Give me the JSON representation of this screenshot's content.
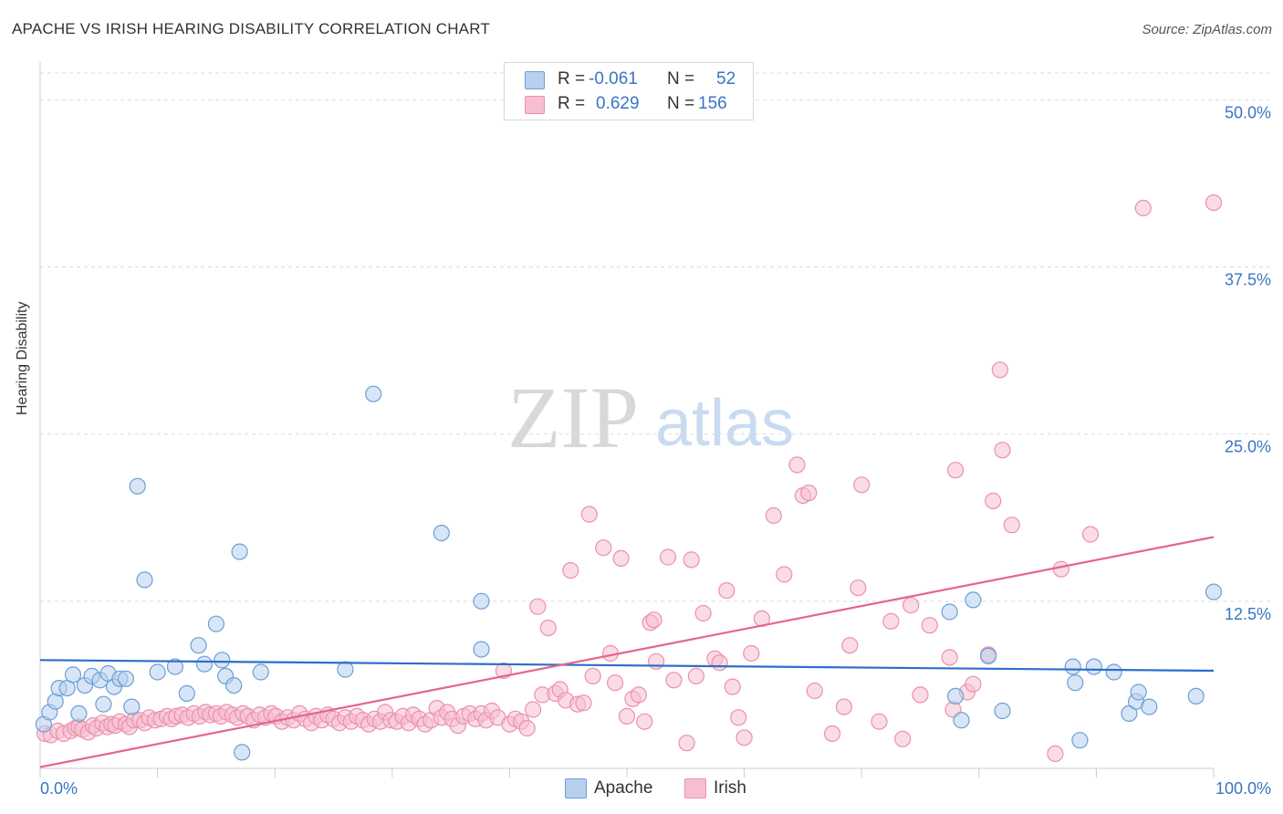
{
  "title": "APACHE VS IRISH HEARING DISABILITY CORRELATION CHART",
  "source": "Source: ZipAtlas.com",
  "colors": {
    "apache_fill": "#b7d0ee",
    "apache_stroke": "#6d9fd6",
    "apache_line": "#2c6fcb",
    "irish_fill": "#f6bfd0",
    "irish_stroke": "#ec8fb0",
    "irish_line": "#e5648f",
    "grid": "#dddddd",
    "tick_text": "#3a75c4"
  },
  "legend": {
    "r_label": "R =",
    "n_label": "N =",
    "apache": {
      "r": "-0.061",
      "n": "52"
    },
    "irish": {
      "r": "0.629",
      "n": "156"
    }
  },
  "bottom_legend": {
    "apache": "Apache",
    "irish": "Irish"
  },
  "watermark": {
    "zip": "ZIP",
    "atlas": "atlas"
  },
  "chart_data": {
    "type": "scatter",
    "title": "APACHE VS IRISH HEARING DISABILITY CORRELATION CHART",
    "xlabel": "",
    "ylabel": "Hearing Disability",
    "xlim": [
      0,
      100
    ],
    "ylim": [
      0,
      52
    ],
    "x_tick_labels": [
      "0.0%",
      "100.0%"
    ],
    "y_ticks": [
      12.5,
      25.0,
      37.5,
      50.0
    ],
    "y_tick_labels": [
      "12.5%",
      "25.0%",
      "37.5%",
      "50.0%"
    ],
    "grid": true,
    "series": [
      {
        "name": "Apache",
        "trend": {
          "x": [
            0,
            100
          ],
          "y": [
            8.1,
            7.3
          ]
        },
        "points": [
          [
            0.3,
            3.3
          ],
          [
            0.8,
            4.2
          ],
          [
            1.3,
            5.0
          ],
          [
            1.6,
            6.0
          ],
          [
            2.3,
            6.0
          ],
          [
            2.8,
            7.0
          ],
          [
            3.3,
            4.1
          ],
          [
            3.8,
            6.2
          ],
          [
            4.4,
            6.9
          ],
          [
            5.1,
            6.6
          ],
          [
            5.4,
            4.8
          ],
          [
            5.8,
            7.1
          ],
          [
            6.3,
            6.1
          ],
          [
            6.8,
            6.7
          ],
          [
            7.3,
            6.7
          ],
          [
            7.8,
            4.6
          ],
          [
            8.3,
            21.1
          ],
          [
            8.9,
            14.1
          ],
          [
            10.0,
            7.2
          ],
          [
            11.5,
            7.6
          ],
          [
            12.5,
            5.6
          ],
          [
            13.5,
            9.2
          ],
          [
            14.0,
            7.8
          ],
          [
            15.0,
            10.8
          ],
          [
            15.5,
            8.1
          ],
          [
            15.8,
            6.9
          ],
          [
            16.5,
            6.2
          ],
          [
            17.0,
            16.2
          ],
          [
            17.2,
            1.2
          ],
          [
            18.8,
            7.2
          ],
          [
            26.0,
            7.4
          ],
          [
            28.4,
            28.0
          ],
          [
            34.2,
            17.6
          ],
          [
            37.6,
            12.5
          ],
          [
            37.6,
            8.9
          ],
          [
            77.5,
            11.7
          ],
          [
            78.0,
            5.4
          ],
          [
            78.5,
            3.6
          ],
          [
            79.5,
            12.6
          ],
          [
            80.8,
            8.4
          ],
          [
            82.0,
            4.3
          ],
          [
            88.0,
            7.6
          ],
          [
            88.2,
            6.4
          ],
          [
            88.6,
            2.1
          ],
          [
            89.8,
            7.6
          ],
          [
            91.5,
            7.2
          ],
          [
            92.8,
            4.1
          ],
          [
            93.4,
            5.0
          ],
          [
            93.6,
            5.7
          ],
          [
            94.5,
            4.6
          ],
          [
            98.5,
            5.4
          ],
          [
            100.0,
            13.2
          ]
        ]
      },
      {
        "name": "Irish",
        "trend": {
          "x": [
            0,
            100
          ],
          "y": [
            0.1,
            17.3
          ]
        },
        "points": [
          [
            0.4,
            2.6
          ],
          [
            0.9,
            2.5
          ],
          [
            1.5,
            2.8
          ],
          [
            2.0,
            2.6
          ],
          [
            2.6,
            2.8
          ],
          [
            3.0,
            3.0
          ],
          [
            3.3,
            3.1
          ],
          [
            3.6,
            2.9
          ],
          [
            4.1,
            2.7
          ],
          [
            4.5,
            3.2
          ],
          [
            4.8,
            3.0
          ],
          [
            5.3,
            3.4
          ],
          [
            5.7,
            3.1
          ],
          [
            6.1,
            3.3
          ],
          [
            6.4,
            3.2
          ],
          [
            6.8,
            3.5
          ],
          [
            7.3,
            3.3
          ],
          [
            7.6,
            3.1
          ],
          [
            8.0,
            3.6
          ],
          [
            8.5,
            3.6
          ],
          [
            8.9,
            3.4
          ],
          [
            9.3,
            3.8
          ],
          [
            9.8,
            3.6
          ],
          [
            10.3,
            3.7
          ],
          [
            10.8,
            3.9
          ],
          [
            11.2,
            3.7
          ],
          [
            11.6,
            3.9
          ],
          [
            12.1,
            4.0
          ],
          [
            12.6,
            3.8
          ],
          [
            13.1,
            4.1
          ],
          [
            13.6,
            3.9
          ],
          [
            14.1,
            4.2
          ],
          [
            14.5,
            4.0
          ],
          [
            15.0,
            4.1
          ],
          [
            15.4,
            3.9
          ],
          [
            15.9,
            4.2
          ],
          [
            16.4,
            4.0
          ],
          [
            16.8,
            3.8
          ],
          [
            17.3,
            4.1
          ],
          [
            17.7,
            3.9
          ],
          [
            18.2,
            3.6
          ],
          [
            18.7,
            4.0
          ],
          [
            19.2,
            3.8
          ],
          [
            19.7,
            4.1
          ],
          [
            20.1,
            3.9
          ],
          [
            20.6,
            3.5
          ],
          [
            21.1,
            3.8
          ],
          [
            21.6,
            3.6
          ],
          [
            22.1,
            4.1
          ],
          [
            22.6,
            3.7
          ],
          [
            23.1,
            3.4
          ],
          [
            23.5,
            3.9
          ],
          [
            24.0,
            3.6
          ],
          [
            24.5,
            4.0
          ],
          [
            25.0,
            3.7
          ],
          [
            25.5,
            3.4
          ],
          [
            26.0,
            3.8
          ],
          [
            26.5,
            3.5
          ],
          [
            27.0,
            3.9
          ],
          [
            27.5,
            3.6
          ],
          [
            28.0,
            3.3
          ],
          [
            28.5,
            3.7
          ],
          [
            29.0,
            3.5
          ],
          [
            29.4,
            4.2
          ],
          [
            29.9,
            3.6
          ],
          [
            30.4,
            3.5
          ],
          [
            30.9,
            3.9
          ],
          [
            31.4,
            3.4
          ],
          [
            31.8,
            4.0
          ],
          [
            32.3,
            3.7
          ],
          [
            32.8,
            3.3
          ],
          [
            33.3,
            3.6
          ],
          [
            33.8,
            4.5
          ],
          [
            34.2,
            3.8
          ],
          [
            34.7,
            4.2
          ],
          [
            35.1,
            3.7
          ],
          [
            35.6,
            3.2
          ],
          [
            36.1,
            3.9
          ],
          [
            36.6,
            4.1
          ],
          [
            37.1,
            3.7
          ],
          [
            37.6,
            4.1
          ],
          [
            38.0,
            3.6
          ],
          [
            38.5,
            4.3
          ],
          [
            39.0,
            3.8
          ],
          [
            39.5,
            7.3
          ],
          [
            40.0,
            3.3
          ],
          [
            40.5,
            3.7
          ],
          [
            41.0,
            3.5
          ],
          [
            41.5,
            3.0
          ],
          [
            42.0,
            4.4
          ],
          [
            42.4,
            12.1
          ],
          [
            42.8,
            5.5
          ],
          [
            43.3,
            10.5
          ],
          [
            43.9,
            5.6
          ],
          [
            44.3,
            5.9
          ],
          [
            44.8,
            5.1
          ],
          [
            45.2,
            14.8
          ],
          [
            45.8,
            4.8
          ],
          [
            46.3,
            4.9
          ],
          [
            46.8,
            19.0
          ],
          [
            47.1,
            6.9
          ],
          [
            48.0,
            16.5
          ],
          [
            48.6,
            8.6
          ],
          [
            49.0,
            6.4
          ],
          [
            49.5,
            15.7
          ],
          [
            50.0,
            3.9
          ],
          [
            50.5,
            5.2
          ],
          [
            51.0,
            5.5
          ],
          [
            51.5,
            3.5
          ],
          [
            52.0,
            10.9
          ],
          [
            52.3,
            11.1
          ],
          [
            52.5,
            8.0
          ],
          [
            53.5,
            15.8
          ],
          [
            54.0,
            6.6
          ],
          [
            55.1,
            1.9
          ],
          [
            55.5,
            15.6
          ],
          [
            55.9,
            6.9
          ],
          [
            56.5,
            11.6
          ],
          [
            57.5,
            8.2
          ],
          [
            57.9,
            7.9
          ],
          [
            58.5,
            13.3
          ],
          [
            59.0,
            6.1
          ],
          [
            59.5,
            3.8
          ],
          [
            60.0,
            2.3
          ],
          [
            60.6,
            8.6
          ],
          [
            61.5,
            11.2
          ],
          [
            62.5,
            18.9
          ],
          [
            63.4,
            14.5
          ],
          [
            64.5,
            22.7
          ],
          [
            65.0,
            20.4
          ],
          [
            65.5,
            20.6
          ],
          [
            66.0,
            5.8
          ],
          [
            67.5,
            2.6
          ],
          [
            68.5,
            4.6
          ],
          [
            69.0,
            9.2
          ],
          [
            69.7,
            13.5
          ],
          [
            70.0,
            21.2
          ],
          [
            71.5,
            3.5
          ],
          [
            72.5,
            11.0
          ],
          [
            73.5,
            2.2
          ],
          [
            74.2,
            12.2
          ],
          [
            75.0,
            5.5
          ],
          [
            75.8,
            10.7
          ],
          [
            77.5,
            8.3
          ],
          [
            77.8,
            4.4
          ],
          [
            78.0,
            22.3
          ],
          [
            79.0,
            5.7
          ],
          [
            79.5,
            6.3
          ],
          [
            80.8,
            8.5
          ],
          [
            81.2,
            20.0
          ],
          [
            81.8,
            29.8
          ],
          [
            82.0,
            23.8
          ],
          [
            82.8,
            18.2
          ],
          [
            86.5,
            1.1
          ],
          [
            87.0,
            14.9
          ],
          [
            89.5,
            17.5
          ],
          [
            94.0,
            41.9
          ],
          [
            100.0,
            42.3
          ]
        ]
      }
    ]
  }
}
